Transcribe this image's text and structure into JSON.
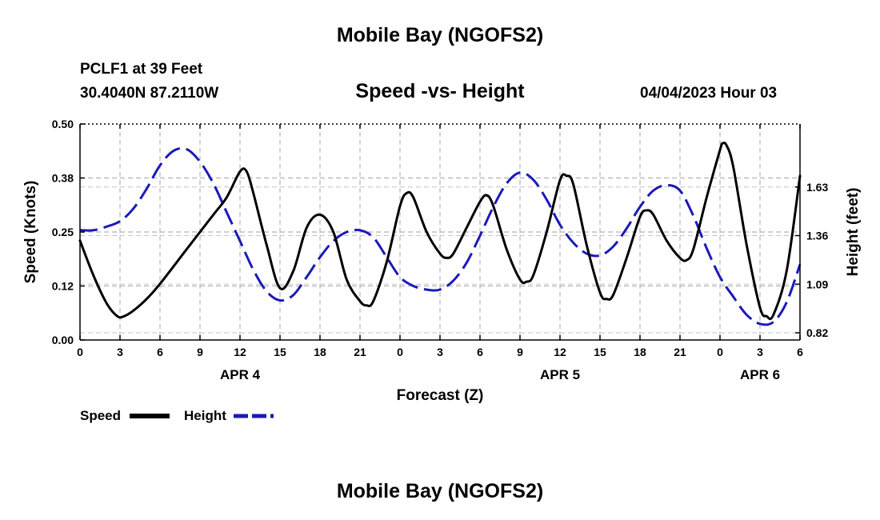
{
  "header": {
    "title": "Mobile Bay (NGOFS2)",
    "station": "PCLF1 at 39 Feet",
    "coordinates": "30.4040N  87.2110W",
    "datetime": "04/04/2023 Hour 03"
  },
  "footer": {
    "title": "Mobile Bay (NGOFS2)"
  },
  "chart_data": {
    "type": "line",
    "title": "Speed -vs- Height",
    "xlabel": "Forecast (Z)",
    "ylabel": "Speed (Knots)",
    "y2label": "Height (feet)",
    "xlim": [
      0,
      54
    ],
    "ylim": [
      0,
      0.5
    ],
    "y2lim": [
      0.78,
      1.98
    ],
    "x_ticks": [
      {
        "x": 0,
        "label": "0"
      },
      {
        "x": 3,
        "label": "3"
      },
      {
        "x": 6,
        "label": "6"
      },
      {
        "x": 9,
        "label": "9"
      },
      {
        "x": 12,
        "label": "12"
      },
      {
        "x": 15,
        "label": "15"
      },
      {
        "x": 18,
        "label": "18"
      },
      {
        "x": 21,
        "label": "21"
      },
      {
        "x": 24,
        "label": "0"
      },
      {
        "x": 27,
        "label": "3"
      },
      {
        "x": 30,
        "label": "6"
      },
      {
        "x": 33,
        "label": "9"
      },
      {
        "x": 36,
        "label": "12"
      },
      {
        "x": 39,
        "label": "15"
      },
      {
        "x": 42,
        "label": "18"
      },
      {
        "x": 45,
        "label": "21"
      },
      {
        "x": 48,
        "label": "0"
      },
      {
        "x": 51,
        "label": "3"
      },
      {
        "x": 54,
        "label": "6"
      }
    ],
    "day_labels": [
      {
        "x": 12,
        "label": "APR 4"
      },
      {
        "x": 36,
        "label": "APR 5"
      },
      {
        "x": 51,
        "label": "APR 6"
      }
    ],
    "y_ticks": [
      {
        "y": 0.0,
        "label": "0.00"
      },
      {
        "y": 0.125,
        "label": "0.12"
      },
      {
        "y": 0.25,
        "label": "0.25"
      },
      {
        "y": 0.375,
        "label": "0.38"
      },
      {
        "y": 0.5,
        "label": "0.50"
      }
    ],
    "y2_ticks": [
      {
        "y": 0.82,
        "label": "0.82"
      },
      {
        "y": 1.09,
        "label": "1.09"
      },
      {
        "y": 1.36,
        "label": "1.36"
      },
      {
        "y": 1.63,
        "label": "1.63"
      }
    ],
    "grid": true,
    "legend_position": "bottom-left",
    "series": [
      {
        "name": "Speed",
        "axis": "left",
        "color": "#000000",
        "style": "solid",
        "x": [
          0,
          1,
          2,
          2.8,
          3.3,
          4,
          5,
          6,
          8,
          10,
          11,
          12,
          12.5,
          13,
          14,
          15,
          16,
          17,
          18,
          19,
          20,
          21,
          21.5,
          22,
          23,
          24,
          24.5,
          25,
          26,
          27,
          27.5,
          28,
          29,
          30,
          30.5,
          31,
          32,
          33,
          33.5,
          34,
          35,
          36,
          36.5,
          37,
          38,
          39,
          39.5,
          40,
          41,
          42,
          42.5,
          43,
          44,
          45,
          45.5,
          46,
          47,
          48,
          48.2,
          48.5,
          49,
          50,
          51,
          51.5,
          52,
          53,
          54
        ],
        "y": [
          0.23,
          0.15,
          0.085,
          0.055,
          0.055,
          0.068,
          0.095,
          0.13,
          0.21,
          0.29,
          0.33,
          0.39,
          0.39,
          0.34,
          0.22,
          0.12,
          0.16,
          0.26,
          0.29,
          0.25,
          0.14,
          0.09,
          0.08,
          0.09,
          0.18,
          0.31,
          0.34,
          0.33,
          0.25,
          0.2,
          0.19,
          0.2,
          0.26,
          0.32,
          0.335,
          0.31,
          0.21,
          0.14,
          0.135,
          0.15,
          0.25,
          0.37,
          0.38,
          0.36,
          0.22,
          0.11,
          0.095,
          0.105,
          0.19,
          0.285,
          0.3,
          0.29,
          0.23,
          0.19,
          0.185,
          0.21,
          0.33,
          0.44,
          0.455,
          0.45,
          0.4,
          0.22,
          0.075,
          0.055,
          0.058,
          0.16,
          0.38
        ]
      },
      {
        "name": "Height",
        "axis": "right",
        "color": "#1a1ab8",
        "style": "dashed",
        "x": [
          0,
          1,
          2,
          3,
          4,
          5,
          6,
          7,
          8,
          9,
          10,
          11,
          12,
          13,
          14,
          15,
          16,
          17,
          18,
          19,
          20,
          21,
          22,
          23,
          24,
          25,
          26,
          27,
          28,
          29,
          30,
          31,
          32,
          33,
          34,
          35,
          36,
          37,
          38,
          39,
          40,
          41,
          42,
          43,
          44,
          45,
          46,
          47,
          48,
          49,
          50,
          51,
          52,
          53,
          54
        ],
        "y": [
          1.39,
          1.39,
          1.41,
          1.44,
          1.51,
          1.62,
          1.75,
          1.83,
          1.84,
          1.77,
          1.65,
          1.49,
          1.33,
          1.17,
          1.05,
          1.0,
          1.03,
          1.13,
          1.24,
          1.33,
          1.38,
          1.39,
          1.35,
          1.24,
          1.13,
          1.08,
          1.06,
          1.06,
          1.11,
          1.21,
          1.36,
          1.52,
          1.65,
          1.71,
          1.67,
          1.56,
          1.42,
          1.32,
          1.26,
          1.25,
          1.3,
          1.4,
          1.52,
          1.61,
          1.64,
          1.61,
          1.47,
          1.29,
          1.13,
          1.02,
          0.92,
          0.87,
          0.88,
          0.99,
          1.2
        ]
      }
    ]
  }
}
